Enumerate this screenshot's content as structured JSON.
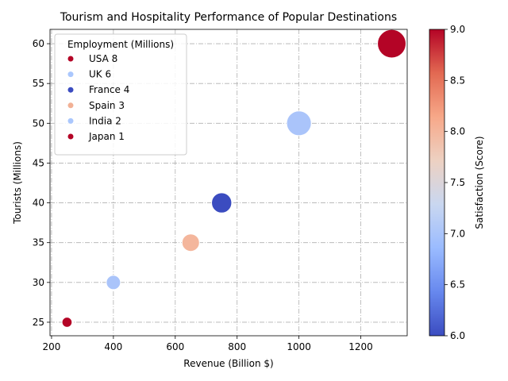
{
  "chart_data": {
    "type": "scatter",
    "title": "Tourism and Hospitality Performance of Popular Destinations",
    "xlabel": "Revenue (Billion $)",
    "ylabel": "Tourists (Millions)",
    "xlim": [
      195,
      1350
    ],
    "ylim": [
      23.3,
      61.8
    ],
    "xticks": [
      200,
      400,
      600,
      800,
      1000,
      1200
    ],
    "yticks": [
      25,
      30,
      35,
      40,
      45,
      50,
      55,
      60
    ],
    "grid": true,
    "grid_style": "dash-dot",
    "legend": {
      "title": "Employment (Millions)",
      "placement": "upper-left",
      "entries": [
        {
          "label": "USA 8",
          "color": "#b40426"
        },
        {
          "label": "UK 6",
          "color": "#aac7fd"
        },
        {
          "label": "France 4",
          "color": "#3b4cc0"
        },
        {
          "label": "Spain 3",
          "color": "#f2b195"
        },
        {
          "label": "India 2",
          "color": "#aac7fd"
        },
        {
          "label": "Japan 1",
          "color": "#b40426"
        }
      ]
    },
    "points": [
      {
        "country": "USA",
        "revenue": 1300,
        "tourists": 60,
        "employment": 8,
        "satisfaction": 9
      },
      {
        "country": "UK",
        "revenue": 1000,
        "tourists": 50,
        "employment": 6,
        "satisfaction": 7
      },
      {
        "country": "France",
        "revenue": 750,
        "tourists": 40,
        "employment": 4,
        "satisfaction": 6
      },
      {
        "country": "Spain",
        "revenue": 650,
        "tourists": 35,
        "employment": 3,
        "satisfaction": 8
      },
      {
        "country": "India",
        "revenue": 400,
        "tourists": 30,
        "employment": 2,
        "satisfaction": 7
      },
      {
        "country": "Japan",
        "revenue": 250,
        "tourists": 25,
        "employment": 1,
        "satisfaction": 9
      }
    ],
    "colorbar": {
      "label": "Satisfaction (Score)",
      "range": [
        6.0,
        9.0
      ],
      "ticks": [
        "6.0",
        "6.5",
        "7.0",
        "7.5",
        "8.0",
        "8.5",
        "9.0"
      ],
      "colormap": "coolwarm",
      "colors": [
        "#3b4cc0",
        "#6788ee",
        "#9abbff",
        "#c9d7f0",
        "#edd1c2",
        "#f7a889",
        "#e26952",
        "#b40426"
      ]
    }
  }
}
